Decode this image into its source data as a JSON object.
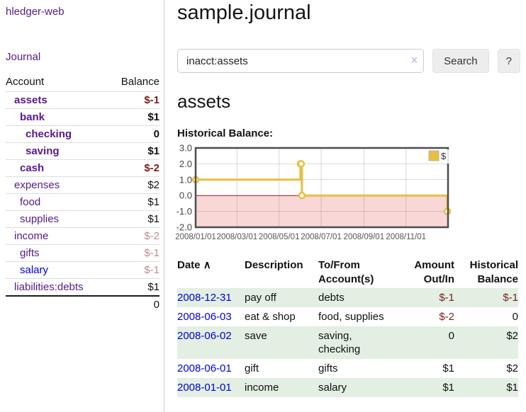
{
  "sidebar": {
    "app_title": "hledger-web",
    "journal_link": "Journal",
    "accounts_table": {
      "headers": [
        "Account",
        "Balance"
      ],
      "rows": [
        {
          "name": "assets",
          "balance": "$-1",
          "depth": 1,
          "matched": true,
          "balance_tone": "neg",
          "link_tone": "visited"
        },
        {
          "name": "bank",
          "balance": "$1",
          "depth": 2,
          "matched": true,
          "balance_tone": "pos",
          "link_tone": "visited"
        },
        {
          "name": "checking",
          "balance": "0",
          "depth": 3,
          "matched": true,
          "balance_tone": "pos",
          "link_tone": "visited"
        },
        {
          "name": "saving",
          "balance": "$1",
          "depth": 3,
          "matched": true,
          "balance_tone": "pos",
          "link_tone": "visited"
        },
        {
          "name": "cash",
          "balance": "$-2",
          "depth": 2,
          "matched": true,
          "balance_tone": "neg",
          "link_tone": "visited"
        },
        {
          "name": "expenses",
          "balance": "$2",
          "depth": 1,
          "matched": false,
          "balance_tone": "pos",
          "link_tone": "visited"
        },
        {
          "name": "food",
          "balance": "$1",
          "depth": 2,
          "matched": false,
          "balance_tone": "pos",
          "link_tone": "visited"
        },
        {
          "name": "supplies",
          "balance": "$1",
          "depth": 2,
          "matched": false,
          "balance_tone": "pos",
          "link_tone": "visited"
        },
        {
          "name": "income",
          "balance": "$-2",
          "depth": 1,
          "matched": false,
          "balance_tone": "neg-soft",
          "link_tone": "visited"
        },
        {
          "name": "gifts",
          "balance": "$-1",
          "depth": 2,
          "matched": false,
          "balance_tone": "neg-soft",
          "link_tone": "visited"
        },
        {
          "name": "salary",
          "balance": "$-1",
          "depth": 2,
          "matched": false,
          "balance_tone": "neg-soft",
          "link_tone": "unvisited"
        },
        {
          "name": "liabilities:debts",
          "balance": "$1",
          "depth": 1,
          "matched": false,
          "balance_tone": "pos",
          "link_tone": "visited"
        }
      ],
      "total": "0"
    }
  },
  "main": {
    "title": "sample.journal",
    "search": {
      "value": "inacct:assets",
      "clear_icon": "×",
      "button": "Search",
      "help_button": "?"
    },
    "account_heading": "assets",
    "register": {
      "headers": [
        "Date",
        "Description",
        "To/From Account(s)",
        "Amount Out/In",
        "Historical Balance"
      ],
      "sort_icon": "∧",
      "rows": [
        {
          "date": "2008-12-31",
          "description": "pay off",
          "accounts": "debts",
          "amount": "$-1",
          "amount_tone": "neg",
          "balance": "$-1",
          "balance_tone": "neg"
        },
        {
          "date": "2008-06-03",
          "description": "eat & shop",
          "accounts": "food, supplies",
          "amount": "$-2",
          "amount_tone": "neg",
          "balance": "0",
          "balance_tone": "pos"
        },
        {
          "date": "2008-06-02",
          "description": "save",
          "accounts": "saving, checking",
          "amount": "0",
          "amount_tone": "pos",
          "balance": "$2",
          "balance_tone": "pos"
        },
        {
          "date": "2008-06-01",
          "description": "gift",
          "accounts": "gifts",
          "amount": "$1",
          "amount_tone": "pos",
          "balance": "$2",
          "balance_tone": "pos"
        },
        {
          "date": "2008-01-01",
          "description": "income",
          "accounts": "salary",
          "amount": "$1",
          "amount_tone": "pos",
          "balance": "$1",
          "balance_tone": "pos"
        }
      ]
    }
  },
  "chart_data": {
    "type": "line",
    "title": "Historical Balance:",
    "series": [
      {
        "name": "$",
        "color": "#e8bf40",
        "step": true,
        "points": [
          [
            "2008-01-01",
            1
          ],
          [
            "2008-06-01",
            2
          ],
          [
            "2008-06-02",
            2
          ],
          [
            "2008-06-03",
            0
          ],
          [
            "2008-12-31",
            -1
          ]
        ]
      }
    ],
    "x_range": [
      "2008-01-01",
      "2009-01-01"
    ],
    "ylim": [
      -2,
      3
    ],
    "y_ticks": [
      3,
      2,
      1,
      0,
      -1,
      -2
    ],
    "y_tick_labels": [
      "3.0",
      "2.0",
      "1.0",
      "0.0",
      "-1.0",
      "-2.0"
    ],
    "x_ticks": [
      "2008-03-01",
      "2008-05-01",
      "2008-07-01",
      "2008-09-01",
      "2008-11-01"
    ],
    "x_tick_label_dates": [
      "2008-01-01",
      "2008-03-01",
      "2008-05-01",
      "2008-07-01",
      "2008-09-01",
      "2008-11-01"
    ],
    "x_tick_labels": [
      "2008/01/01",
      "2008/03/01",
      "2008/05/01",
      "2008/07/01",
      "2008/09/01",
      "2008/11/01"
    ],
    "legend": {
      "label": "$",
      "position": "top-right"
    },
    "grid": true
  },
  "colors": {
    "link_visited": "#551a8b",
    "link_unvisited": "#0000dd",
    "negative_strong": "#7f1d1d",
    "negative_soft": "#c28b91",
    "row_stripe_green": "#e3efe3",
    "chart_line": "#e8bf40",
    "chart_negative_fill": "#f9d7d7",
    "chart_zero_line": "#8b1a1a",
    "chart_border": "#4d4d4d"
  }
}
